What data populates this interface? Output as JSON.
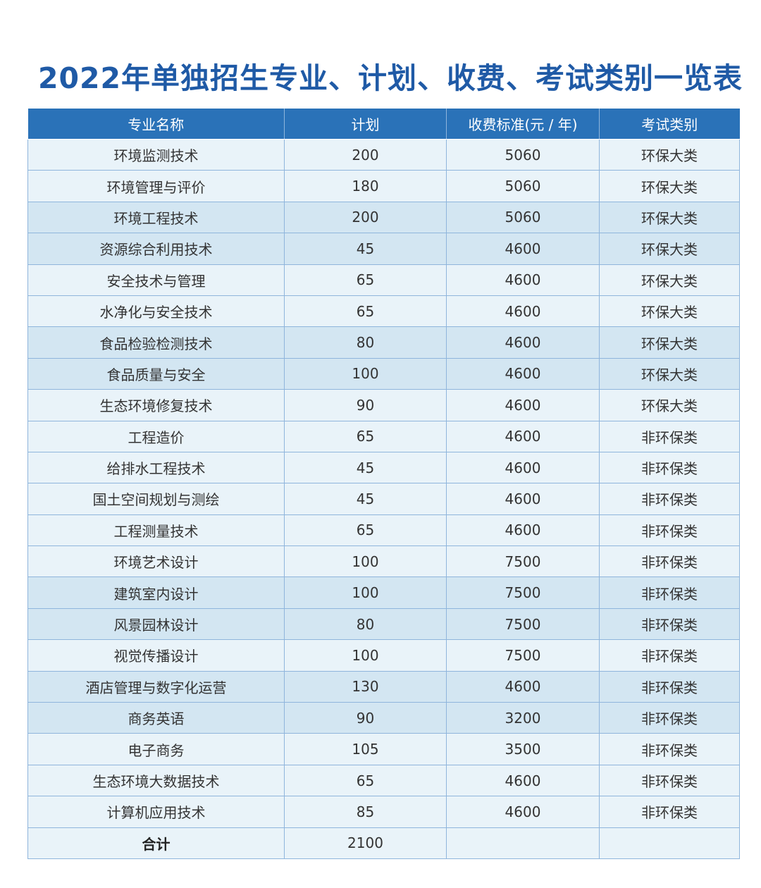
{
  "title": "2022年单独招生专业、计划、收费、考试类别一览表",
  "table": {
    "headers": [
      "专业名称",
      "计划",
      "收费标准(元 / 年)",
      "考试类别"
    ],
    "rows": [
      {
        "major": "环境监测技术",
        "plan": "200",
        "fee": "5060",
        "category": "环保大类",
        "shade": "light"
      },
      {
        "major": "环境管理与评价",
        "plan": "180",
        "fee": "5060",
        "category": "环保大类",
        "shade": "light"
      },
      {
        "major": "环境工程技术",
        "plan": "200",
        "fee": "5060",
        "category": "环保大类",
        "shade": "dark"
      },
      {
        "major": "资源综合利用技术",
        "plan": "45",
        "fee": "4600",
        "category": "环保大类",
        "shade": "dark"
      },
      {
        "major": "安全技术与管理",
        "plan": "65",
        "fee": "4600",
        "category": "环保大类",
        "shade": "light"
      },
      {
        "major": "水净化与安全技术",
        "plan": "65",
        "fee": "4600",
        "category": "环保大类",
        "shade": "light"
      },
      {
        "major": "食品检验检测技术",
        "plan": "80",
        "fee": "4600",
        "category": "环保大类",
        "shade": "dark"
      },
      {
        "major": "食品质量与安全",
        "plan": "100",
        "fee": "4600",
        "category": "环保大类",
        "shade": "dark"
      },
      {
        "major": "生态环境修复技术",
        "plan": "90",
        "fee": "4600",
        "category": "环保大类",
        "shade": "light"
      },
      {
        "major": "工程造价",
        "plan": "65",
        "fee": "4600",
        "category": "非环保类",
        "shade": "light"
      },
      {
        "major": "给排水工程技术",
        "plan": "45",
        "fee": "4600",
        "category": "非环保类",
        "shade": "light"
      },
      {
        "major": "国土空间规划与测绘",
        "plan": "45",
        "fee": "4600",
        "category": "非环保类",
        "shade": "light"
      },
      {
        "major": "工程测量技术",
        "plan": "65",
        "fee": "4600",
        "category": "非环保类",
        "shade": "light"
      },
      {
        "major": "环境艺术设计",
        "plan": "100",
        "fee": "7500",
        "category": "非环保类",
        "shade": "light"
      },
      {
        "major": "建筑室内设计",
        "plan": "100",
        "fee": "7500",
        "category": "非环保类",
        "shade": "dark"
      },
      {
        "major": "风景园林设计",
        "plan": "80",
        "fee": "7500",
        "category": "非环保类",
        "shade": "dark"
      },
      {
        "major": "视觉传播设计",
        "plan": "100",
        "fee": "7500",
        "category": "非环保类",
        "shade": "light"
      },
      {
        "major": "酒店管理与数字化运营",
        "plan": "130",
        "fee": "4600",
        "category": "非环保类",
        "shade": "dark"
      },
      {
        "major": "商务英语",
        "plan": "90",
        "fee": "3200",
        "category": "非环保类",
        "shade": "dark"
      },
      {
        "major": "电子商务",
        "plan": "105",
        "fee": "3500",
        "category": "非环保类",
        "shade": "light"
      },
      {
        "major": "生态环境大数据技术",
        "plan": "65",
        "fee": "4600",
        "category": "非环保类",
        "shade": "light"
      },
      {
        "major": "计算机应用技术",
        "plan": "85",
        "fee": "4600",
        "category": "非环保类",
        "shade": "light"
      }
    ],
    "total": {
      "label": "合计",
      "plan": "2100",
      "fee": "",
      "category": ""
    }
  },
  "colors": {
    "title": "#1f5aa6",
    "header_bg": "#2a72b8",
    "row_light": "#e9f3f9",
    "row_dark": "#d3e6f2",
    "grid_line": "#8fb5dc"
  }
}
